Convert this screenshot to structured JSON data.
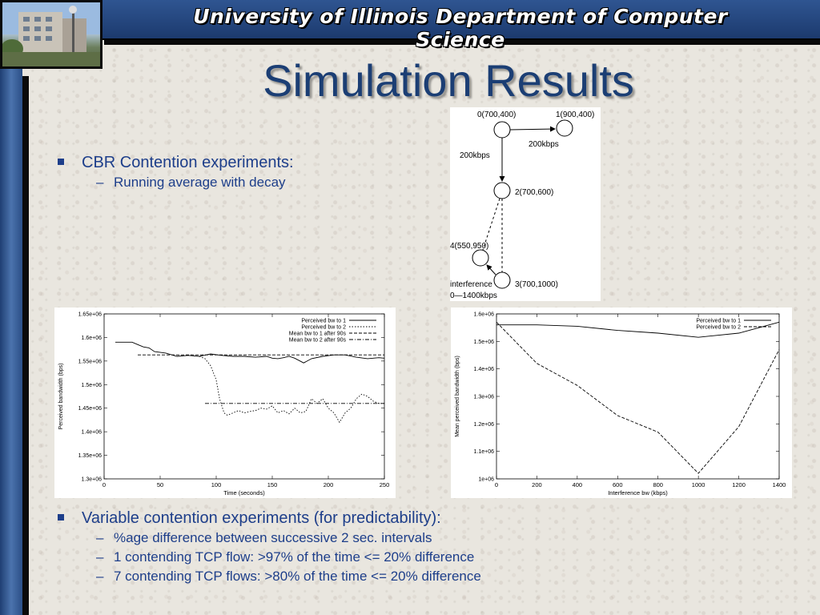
{
  "banner": "University of Illinois Department of Computer Science",
  "title": "Simulation Results",
  "bullets_top": {
    "main": "CBR Contention experiments:",
    "sub": "Running average with decay"
  },
  "bullets_bottom": {
    "main": "Variable contention experiments (for predictability):",
    "subs": [
      "%age difference between successive 2 sec. intervals",
      "1 contending TCP flow: >97% of the time <= 20% difference",
      "7 contending TCP flows: >80% of the time <= 20% difference"
    ]
  },
  "topology": {
    "nodes": [
      {
        "label": "0(700,400)"
      },
      {
        "label": "1(900,400)"
      },
      {
        "label": "2(700,600)"
      },
      {
        "label": "3(700,1000)"
      },
      {
        "label": "4(550,950)"
      }
    ],
    "edge_labels": [
      "200kbps",
      "200kbps"
    ],
    "interference_label": "interference",
    "interference_range": "0—1400kbps"
  },
  "chart_data": [
    {
      "type": "line",
      "xlabel": "Time (seconds)",
      "ylabel": "Perceived bandwidth (bps)",
      "xlim": [
        0,
        250
      ],
      "ylim": [
        1300000,
        1650000
      ],
      "x_ticks": [
        "0",
        "50",
        "100",
        "150",
        "200",
        "250"
      ],
      "y_ticks": [
        "1.3e+06",
        "1.35e+06",
        "1.4e+06",
        "1.45e+06",
        "1.5e+06",
        "1.55e+06",
        "1.6e+06",
        "1.65e+06"
      ],
      "legend_position": "top-right",
      "series": [
        {
          "name": "Perceived bw to 1",
          "style": "solid",
          "x": [
            10,
            20,
            25,
            30,
            35,
            40,
            45,
            55,
            65,
            75,
            85,
            95,
            105,
            115,
            125,
            135,
            145,
            150,
            155,
            160,
            165,
            170,
            178,
            185,
            195,
            205,
            215,
            225,
            235,
            245,
            250
          ],
          "y": [
            1590000,
            1590000,
            1590000,
            1585000,
            1580000,
            1578000,
            1570000,
            1567000,
            1560000,
            1562000,
            1560000,
            1565000,
            1562000,
            1560000,
            1560000,
            1558000,
            1560000,
            1556000,
            1555000,
            1557000,
            1560000,
            1556000,
            1546000,
            1555000,
            1560000,
            1563000,
            1563000,
            1558000,
            1555000,
            1557000,
            1556000
          ]
        },
        {
          "name": "Perceived bw to 2",
          "style": "dotted",
          "x": [
            85,
            90,
            95,
            100,
            103,
            107,
            110,
            115,
            120,
            125,
            130,
            135,
            140,
            145,
            150,
            155,
            160,
            165,
            170,
            175,
            180,
            185,
            190,
            195,
            200,
            205,
            210,
            215,
            220,
            225,
            230,
            235,
            240,
            245,
            250
          ],
          "y": [
            1560000,
            1555000,
            1540000,
            1510000,
            1470000,
            1440000,
            1435000,
            1440000,
            1445000,
            1440000,
            1443000,
            1445000,
            1450000,
            1448000,
            1455000,
            1440000,
            1445000,
            1438000,
            1450000,
            1440000,
            1443000,
            1470000,
            1460000,
            1470000,
            1450000,
            1440000,
            1420000,
            1440000,
            1450000,
            1470000,
            1480000,
            1475000,
            1465000,
            1460000,
            1460000
          ]
        },
        {
          "name": "Mean bw to 1 after 90s",
          "style": "dashed",
          "x": [
            30,
            250
          ],
          "y": [
            1563000,
            1563000
          ]
        },
        {
          "name": "Mean bw to 2 after 90s",
          "style": "dashdot",
          "x": [
            90,
            250
          ],
          "y": [
            1460000,
            1460000
          ]
        }
      ]
    },
    {
      "type": "line",
      "xlabel": "Interference bw (kbps)",
      "ylabel": "Mean perceived bandwidth (bps)",
      "xlim": [
        0,
        1400
      ],
      "ylim": [
        1000000,
        1600000
      ],
      "x_ticks": [
        "0",
        "200",
        "400",
        "600",
        "800",
        "1000",
        "1200",
        "1400"
      ],
      "y_ticks": [
        "1e+06",
        "1.1e+06",
        "1.2e+06",
        "1.3e+06",
        "1.4e+06",
        "1.5e+06",
        "1.6e+06"
      ],
      "legend_position": "top-right",
      "series": [
        {
          "name": "Perceived bw to 1",
          "style": "solid",
          "x": [
            0,
            200,
            400,
            600,
            800,
            1000,
            1200,
            1400
          ],
          "y": [
            1560000,
            1560000,
            1555000,
            1540000,
            1530000,
            1515000,
            1530000,
            1570000
          ]
        },
        {
          "name": "Perceived bw to 2",
          "style": "dashed",
          "x": [
            0,
            200,
            400,
            600,
            800,
            1000,
            1200,
            1400
          ],
          "y": [
            1570000,
            1420000,
            1340000,
            1230000,
            1170000,
            1020000,
            1190000,
            1470000
          ]
        }
      ]
    }
  ]
}
